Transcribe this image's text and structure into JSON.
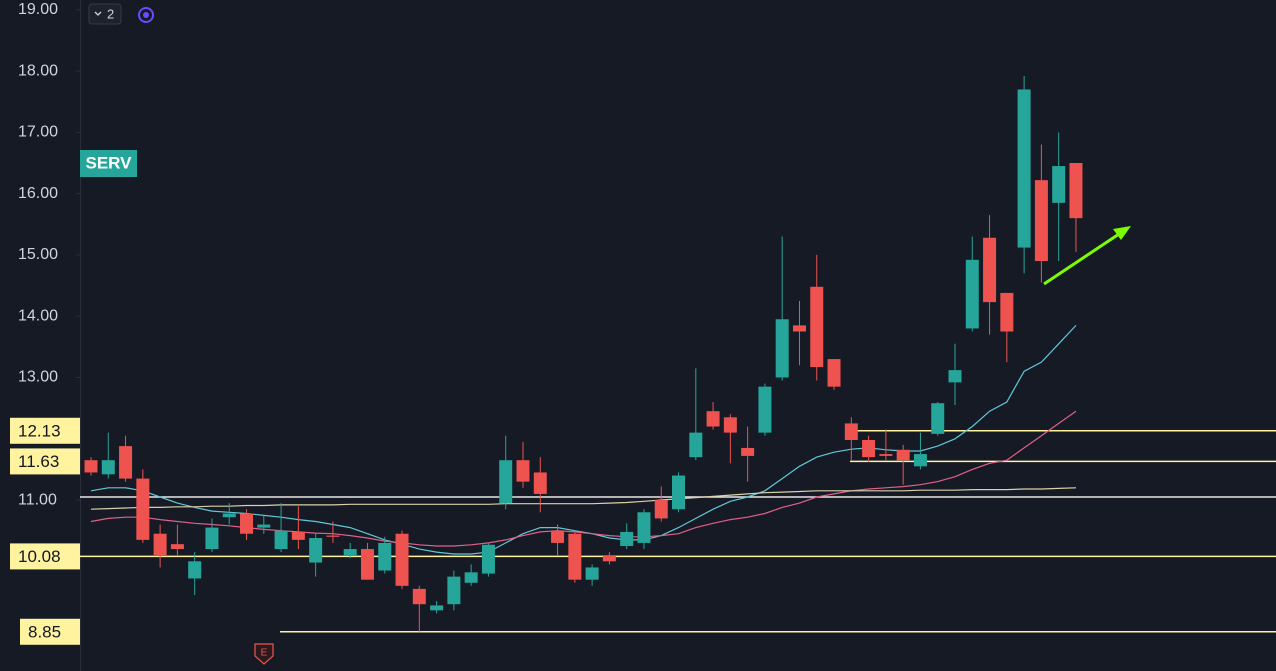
{
  "chart_data": {
    "type": "candlestick",
    "symbol": "SERV",
    "indicator_count": "2",
    "earnings_marker": "E",
    "ylim": [
      8.21,
      19.16
    ],
    "yticks": [
      {
        "value": 19,
        "label": "19.00"
      },
      {
        "value": 18,
        "label": "18.00"
      },
      {
        "value": 17,
        "label": "17.00"
      },
      {
        "value": 16,
        "label": "16.00"
      },
      {
        "value": 15,
        "label": "15.00"
      },
      {
        "value": 14,
        "label": "14.00"
      },
      {
        "value": 13,
        "label": "13.00"
      },
      {
        "value": 11,
        "label": "11.00"
      }
    ],
    "up_color": "#26a69a",
    "down_color": "#ef5350",
    "open": [
      11.65,
      11.42,
      11.88,
      11.35,
      10.45,
      10.28,
      9.72,
      10.2,
      10.72,
      10.78,
      10.55,
      10.2,
      10.48,
      9.98,
      10.42,
      10.1,
      10.2,
      9.85,
      10.45,
      9.55,
      9.2,
      9.3,
      9.65,
      9.8,
      10.95,
      11.65,
      11.45,
      10.5,
      10.45,
      9.7,
      10.1,
      10.25,
      10.3,
      11.0,
      10.85,
      11.7,
      12.45,
      12.35,
      11.85,
      12.1,
      13.0,
      13.85,
      14.48,
      13.3,
      12.25,
      11.98,
      11.75,
      11.82,
      11.55,
      12.08,
      12.92,
      13.8,
      15.28,
      14.38,
      15.12,
      16.22,
      15.85,
      16.5
    ],
    "high": [
      11.7,
      12.1,
      12.05,
      11.5,
      10.6,
      10.6,
      10.15,
      10.7,
      10.95,
      10.85,
      10.75,
      10.95,
      10.9,
      10.45,
      10.65,
      10.3,
      10.3,
      10.4,
      10.5,
      9.6,
      9.35,
      9.85,
      9.95,
      10.3,
      12.05,
      11.95,
      11.7,
      10.6,
      10.5,
      9.95,
      10.15,
      10.62,
      10.85,
      11.22,
      11.45,
      13.15,
      12.6,
      12.4,
      12.2,
      12.9,
      15.3,
      14.25,
      15.0,
      13.3,
      12.35,
      12.05,
      12.15,
      11.9,
      12.1,
      12.6,
      13.55,
      15.3,
      15.65,
      14.38,
      17.92,
      16.8,
      17.0,
      16.5
    ],
    "low": [
      11.4,
      11.35,
      11.3,
      10.3,
      9.9,
      10.1,
      9.45,
      10.15,
      10.6,
      10.35,
      10.45,
      10.15,
      10.2,
      9.75,
      10.3,
      10.05,
      9.7,
      9.8,
      9.55,
      8.85,
      9.15,
      9.2,
      9.6,
      9.75,
      10.85,
      11.2,
      10.8,
      10.1,
      9.65,
      9.6,
      9.95,
      10.2,
      10.2,
      10.65,
      10.8,
      11.65,
      12.15,
      11.6,
      11.3,
      12.05,
      12.95,
      13.2,
      12.95,
      12.8,
      11.65,
      11.62,
      11.65,
      11.25,
      11.5,
      12.05,
      12.55,
      13.75,
      13.7,
      13.25,
      14.7,
      14.55,
      14.9,
      15.05
    ],
    "close": [
      11.45,
      11.65,
      11.35,
      10.35,
      10.1,
      10.2,
      10.0,
      10.55,
      10.78,
      10.45,
      10.6,
      10.5,
      10.35,
      10.38,
      10.4,
      10.2,
      9.7,
      10.3,
      9.6,
      9.3,
      9.28,
      9.75,
      9.82,
      10.27,
      11.65,
      11.3,
      11.1,
      10.3,
      9.7,
      9.9,
      10.0,
      10.48,
      10.8,
      10.7,
      11.4,
      12.1,
      12.2,
      12.1,
      11.72,
      12.85,
      13.95,
      13.75,
      13.17,
      12.85,
      11.98,
      11.7,
      11.72,
      11.65,
      11.75,
      12.58,
      13.12,
      14.92,
      14.23,
      13.75,
      17.7,
      14.9,
      16.45,
      15.6
    ],
    "series": [
      {
        "color": "#5fc8d8",
        "values": [
          11.15,
          11.2,
          11.2,
          11.15,
          11.05,
          10.95,
          10.88,
          10.82,
          10.8,
          10.78,
          10.75,
          10.72,
          10.68,
          10.65,
          10.6,
          10.55,
          10.45,
          10.35,
          10.28,
          10.2,
          10.15,
          10.12,
          10.12,
          10.15,
          10.3,
          10.45,
          10.55,
          10.55,
          10.5,
          10.45,
          10.38,
          10.35,
          10.35,
          10.42,
          10.55,
          10.7,
          10.85,
          10.98,
          11.05,
          11.15,
          11.35,
          11.55,
          11.7,
          11.78,
          11.83,
          11.85,
          11.82,
          11.8,
          11.8,
          11.88,
          12.0,
          12.2,
          12.45,
          12.6,
          13.1,
          13.25,
          13.55,
          13.85
        ]
      },
      {
        "color": "#e0608a",
        "values": [
          10.65,
          10.7,
          10.72,
          10.72,
          10.68,
          10.65,
          10.62,
          10.6,
          10.58,
          10.55,
          10.52,
          10.5,
          10.48,
          10.46,
          10.45,
          10.42,
          10.38,
          10.33,
          10.3,
          10.27,
          10.25,
          10.25,
          10.27,
          10.3,
          10.35,
          10.42,
          10.48,
          10.5,
          10.48,
          10.45,
          10.42,
          10.4,
          10.4,
          10.42,
          10.45,
          10.55,
          10.62,
          10.68,
          10.72,
          10.78,
          10.88,
          10.95,
          11.05,
          11.1,
          11.15,
          11.18,
          11.2,
          11.22,
          11.25,
          11.3,
          11.38,
          11.5,
          11.6,
          11.65,
          11.85,
          12.05,
          12.25,
          12.45
        ]
      },
      {
        "color": "#d8d0a8",
        "values": [
          10.85,
          10.86,
          10.87,
          10.88,
          10.88,
          10.89,
          10.89,
          10.9,
          10.9,
          10.91,
          10.91,
          10.92,
          10.92,
          10.92,
          10.92,
          10.93,
          10.93,
          10.93,
          10.93,
          10.93,
          10.93,
          10.93,
          10.93,
          10.93,
          10.94,
          10.94,
          10.94,
          10.94,
          10.94,
          10.94,
          10.95,
          10.96,
          10.98,
          11.0,
          11.02,
          11.04,
          11.06,
          11.08,
          11.1,
          11.12,
          11.13,
          11.14,
          11.15,
          11.15,
          11.15,
          11.15,
          11.15,
          11.15,
          11.16,
          11.16,
          11.16,
          11.17,
          11.17,
          11.17,
          11.18,
          11.18,
          11.19,
          11.2
        ]
      }
    ],
    "levels": [
      {
        "value": 12.13,
        "color": "#fff3a0",
        "labeled": true
      },
      {
        "value": 11.63,
        "color": "#fff3a0",
        "labeled": true
      },
      {
        "value": 11.05,
        "color": "#e8e8e8",
        "labeled": false
      },
      {
        "value": 10.08,
        "color": "#fff3a0",
        "labeled": true
      },
      {
        "value": 8.85,
        "color": "#fff3a0",
        "labeled": true
      }
    ]
  }
}
